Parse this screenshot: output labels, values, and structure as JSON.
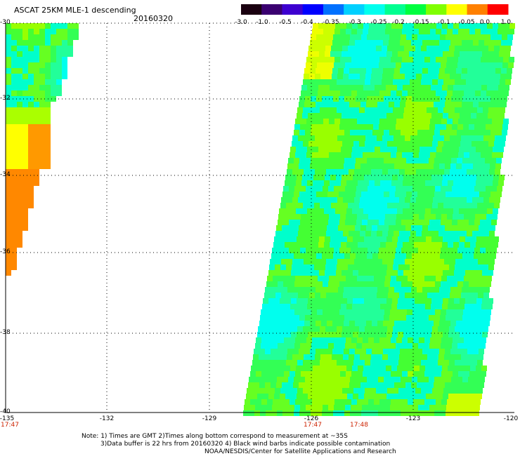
{
  "header": {
    "title": "ASCAT 25KM MLE-1 descending",
    "date": "20160320"
  },
  "colorbar": {
    "ticks": [
      "-3.0",
      "-1.0",
      "-0.5",
      "-0.4",
      "-0.35",
      "-0.3",
      "-0.25",
      "-0.2",
      "-0.15",
      "-0.1",
      "-0.05",
      "0.0",
      "1.0"
    ],
    "colors": [
      "#1a0010",
      "#3a0070",
      "#3d00d0",
      "#0000ff",
      "#0070ff",
      "#00d0ff",
      "#00ffee",
      "#00ff90",
      "#00ff40",
      "#80ff00",
      "#ffff00",
      "#ff8000",
      "#ff0000"
    ]
  },
  "map": {
    "lat_labels": [
      "-30",
      "-32",
      "-34",
      "-36",
      "-38",
      "-40"
    ],
    "lon_labels": [
      "-135",
      "-132",
      "-129",
      "-126",
      "-123",
      "-120"
    ],
    "time_labels": [
      "17:47",
      "17:47",
      "17:48"
    ]
  },
  "notes": [
    "Note: 1) Times are GMT 2)Times along bottom correspond to measurement at ~35S",
    "3)Data buffer is 22 hrs from 20160320 4) Black wind barbs indicate possible contamination",
    "NOAA/NESDIS/Center for Satellite Applications and Research"
  ]
}
